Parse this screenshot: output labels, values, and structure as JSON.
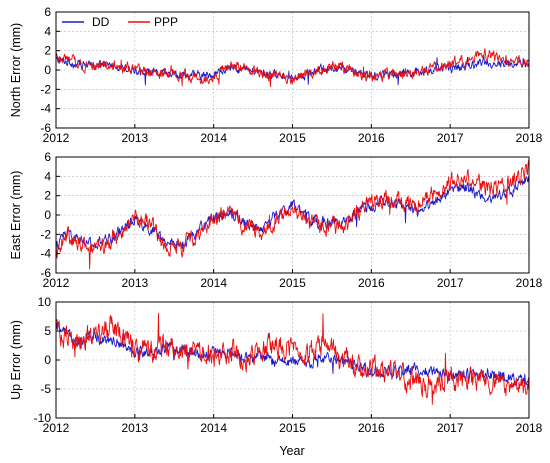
{
  "chart_data": {
    "type": "line",
    "x_label": "Year",
    "x_ticks": [
      "2012",
      "2013",
      "2014",
      "2015",
      "2016",
      "2017",
      "2018"
    ],
    "xlim": [
      2012,
      2018
    ],
    "grid": true,
    "legend": {
      "placement": "top-left",
      "entries": [
        {
          "name": "DD",
          "color": "#1a1acc"
        },
        {
          "name": "PPP",
          "color": "#e81010"
        }
      ]
    },
    "panels": [
      {
        "id": "north",
        "ylabel": "North Error (mm)",
        "ylim": [
          -6,
          6
        ],
        "yticks": [
          "6",
          "4",
          "2",
          "0",
          "-2",
          "-4",
          "-6"
        ],
        "noise": {
          "DD": 0.35,
          "PPP": 0.45
        },
        "series": [
          {
            "name": "DD",
            "color": "#1a1acc",
            "x": [
              2012.0,
              2012.1,
              2012.3,
              2012.5,
              2012.7,
              2012.9,
              2013.0,
              2013.3,
              2013.6,
              2013.9,
              2014.0,
              2014.2,
              2014.4,
              2014.6,
              2014.8,
              2015.0,
              2015.2,
              2015.4,
              2015.6,
              2015.8,
              2016.0,
              2016.2,
              2016.5,
              2016.8,
              2017.0,
              2017.2,
              2017.4,
              2017.6,
              2017.8,
              2018.0
            ],
            "y": [
              1.0,
              0.9,
              0.6,
              0.4,
              0.5,
              0.3,
              0.0,
              -0.4,
              -0.5,
              -0.6,
              -0.4,
              0.2,
              0.0,
              -0.3,
              -0.5,
              -0.6,
              -0.4,
              0.2,
              0.3,
              -0.1,
              -0.6,
              -0.4,
              -0.2,
              0.0,
              0.2,
              0.4,
              0.8,
              0.6,
              0.6,
              0.6
            ]
          },
          {
            "name": "PPP",
            "color": "#e81010",
            "x": [
              2012.0,
              2012.1,
              2012.3,
              2012.5,
              2012.7,
              2012.9,
              2013.0,
              2013.3,
              2013.6,
              2013.9,
              2014.0,
              2014.2,
              2014.4,
              2014.6,
              2014.8,
              2015.0,
              2015.2,
              2015.4,
              2015.6,
              2015.8,
              2016.0,
              2016.2,
              2016.5,
              2016.8,
              2017.0,
              2017.2,
              2017.4,
              2017.6,
              2017.8,
              2018.0
            ],
            "y": [
              1.2,
              1.1,
              0.7,
              0.5,
              0.4,
              0.2,
              -0.1,
              -0.5,
              -0.6,
              -0.8,
              -0.6,
              0.4,
              0.1,
              -0.2,
              -0.6,
              -0.8,
              -0.5,
              0.1,
              0.4,
              -0.3,
              -0.8,
              -0.5,
              -0.4,
              0.1,
              0.6,
              1.1,
              1.8,
              1.2,
              1.0,
              0.8
            ]
          }
        ]
      },
      {
        "id": "east",
        "ylabel": "East Error (mm)",
        "ylim": [
          -6,
          6
        ],
        "yticks": [
          "6",
          "4",
          "2",
          "0",
          "-2",
          "-4",
          "-6"
        ],
        "noise": {
          "DD": 0.45,
          "PPP": 0.7
        },
        "series": [
          {
            "name": "DD",
            "color": "#1a1acc",
            "x": [
              2012.0,
              2012.1,
              2012.3,
              2012.5,
              2012.7,
              2012.9,
              2013.0,
              2013.2,
              2013.4,
              2013.6,
              2013.8,
              2014.0,
              2014.2,
              2014.4,
              2014.6,
              2014.8,
              2015.0,
              2015.2,
              2015.4,
              2015.6,
              2015.8,
              2016.0,
              2016.2,
              2016.4,
              2016.6,
              2016.8,
              2017.0,
              2017.2,
              2017.4,
              2017.6,
              2017.8,
              2018.0
            ],
            "y": [
              -3.5,
              -2.0,
              -2.6,
              -3.2,
              -2.4,
              -1.0,
              -0.4,
              -1.4,
              -3.0,
              -3.0,
              -1.6,
              -0.2,
              0.4,
              -0.8,
              -1.4,
              0.0,
              1.0,
              -0.4,
              -0.8,
              -1.0,
              0.2,
              1.0,
              1.4,
              0.8,
              0.4,
              1.4,
              2.6,
              2.8,
              2.0,
              1.8,
              2.6,
              4.0
            ]
          },
          {
            "name": "PPP",
            "color": "#e81010",
            "x": [
              2012.0,
              2012.1,
              2012.3,
              2012.5,
              2012.7,
              2012.9,
              2013.0,
              2013.2,
              2013.4,
              2013.6,
              2013.8,
              2014.0,
              2014.2,
              2014.4,
              2014.6,
              2014.8,
              2015.0,
              2015.2,
              2015.4,
              2015.6,
              2015.8,
              2016.0,
              2016.2,
              2016.4,
              2016.6,
              2016.8,
              2017.0,
              2017.2,
              2017.4,
              2017.6,
              2017.8,
              2018.0
            ],
            "y": [
              -3.8,
              -2.2,
              -2.8,
              -3.5,
              -2.6,
              -1.2,
              -0.3,
              -1.0,
              -3.2,
              -3.4,
              -1.8,
              -0.4,
              0.2,
              -1.2,
              -2.0,
              -0.4,
              0.8,
              -0.6,
              -1.2,
              -1.2,
              0.0,
              1.4,
              1.8,
              1.4,
              1.0,
              2.4,
              3.6,
              3.8,
              3.0,
              2.6,
              3.4,
              4.8
            ]
          }
        ]
      },
      {
        "id": "up",
        "ylabel": "Up Error (mm)",
        "ylim": [
          -10,
          10
        ],
        "yticks": [
          "10",
          "5",
          "0",
          "-5",
          "-10"
        ],
        "noise": {
          "DD": 0.8,
          "PPP": 1.6
        },
        "series": [
          {
            "name": "DD",
            "color": "#1a1acc",
            "x": [
              2012.0,
              2012.1,
              2012.3,
              2012.5,
              2012.7,
              2012.9,
              2013.0,
              2013.2,
              2013.4,
              2013.6,
              2013.8,
              2014.0,
              2014.2,
              2014.4,
              2014.6,
              2014.8,
              2015.0,
              2015.2,
              2015.4,
              2015.6,
              2015.8,
              2016.0,
              2016.2,
              2016.4,
              2016.6,
              2016.8,
              2017.0,
              2017.2,
              2017.4,
              2017.6,
              2017.8,
              2018.0
            ],
            "y": [
              6.0,
              4.5,
              3.5,
              4.0,
              3.6,
              2.5,
              1.5,
              1.2,
              2.2,
              1.6,
              1.0,
              1.2,
              1.0,
              0.5,
              0.4,
              0.0,
              -0.5,
              -0.4,
              0.3,
              0.0,
              -1.2,
              -1.8,
              -2.0,
              -2.2,
              -1.4,
              -2.0,
              -2.4,
              -2.6,
              -3.0,
              -2.4,
              -3.2,
              -4.0
            ]
          },
          {
            "name": "PPP",
            "color": "#e81010",
            "x": [
              2012.0,
              2012.1,
              2012.3,
              2012.5,
              2012.7,
              2012.9,
              2013.0,
              2013.2,
              2013.4,
              2013.6,
              2013.8,
              2014.0,
              2014.2,
              2014.4,
              2014.6,
              2014.8,
              2015.0,
              2015.2,
              2015.4,
              2015.6,
              2015.8,
              2016.0,
              2016.2,
              2016.4,
              2016.6,
              2016.8,
              2017.0,
              2017.2,
              2017.4,
              2017.6,
              2017.8,
              2018.0
            ],
            "y": [
              5.5,
              4.0,
              3.0,
              4.5,
              6.0,
              3.5,
              1.5,
              1.0,
              2.5,
              1.5,
              1.0,
              1.0,
              1.5,
              0.0,
              2.0,
              2.5,
              2.0,
              1.5,
              2.5,
              0.5,
              -1.0,
              -1.5,
              -2.5,
              -3.0,
              -4.0,
              -4.5,
              -3.5,
              -3.0,
              -4.0,
              -4.5,
              -5.0,
              -4.5
            ]
          }
        ]
      }
    ]
  }
}
